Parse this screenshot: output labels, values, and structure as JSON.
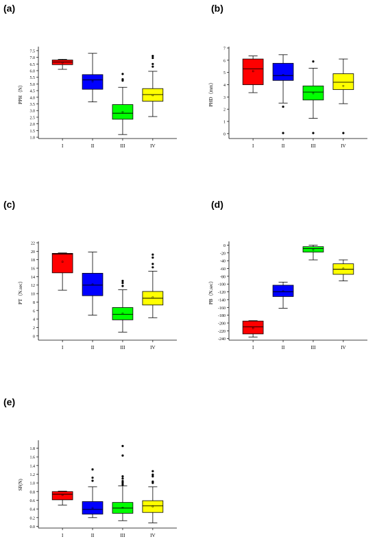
{
  "chart_data": [
    {
      "type": "box",
      "panel_label": "(a)",
      "ylabel": "PPH（N）",
      "categories": [
        "I",
        "II",
        "III",
        "IV"
      ],
      "ylim": [
        0.9,
        7.7
      ],
      "yticks": [
        1.0,
        1.5,
        2.0,
        2.5,
        3.0,
        3.5,
        4.0,
        4.5,
        5.0,
        5.5,
        6.0,
        6.5,
        7.0,
        7.5
      ],
      "ytick_labels": [
        "1.0",
        "1.5",
        "2.0",
        "2.5",
        "3.0",
        "3.5",
        "4.0",
        "4.5",
        "5.0",
        "5.5",
        "6.0",
        "6.5",
        "7.0",
        "7.5"
      ],
      "boxes": [
        {
          "min": 6.1,
          "q1": 6.45,
          "median": 6.65,
          "q3": 6.8,
          "max": 6.85,
          "mean": 6.6,
          "outliers": [],
          "color": "#ff0000"
        },
        {
          "min": 3.65,
          "q1": 4.6,
          "median": 5.3,
          "q3": 5.7,
          "max": 7.3,
          "mean": 5.2,
          "outliers": [],
          "color": "#0000ff"
        },
        {
          "min": 1.2,
          "q1": 2.35,
          "median": 2.8,
          "q3": 3.45,
          "max": 4.75,
          "mean": 2.9,
          "outliers": [
            5.25,
            5.35,
            5.75
          ],
          "color": "#00ff00"
        },
        {
          "min": 2.55,
          "q1": 3.7,
          "median": 4.2,
          "q3": 4.65,
          "max": 5.95,
          "mean": 4.15,
          "outliers": [
            6.3,
            6.5,
            6.95,
            7.1
          ],
          "color": "#ffff00"
        }
      ]
    },
    {
      "type": "box",
      "panel_label": "(b)",
      "ylabel": "PHD（mm）",
      "categories": [
        "I",
        "II",
        "III",
        "IV"
      ],
      "ylim": [
        -0.4,
        7.0
      ],
      "yticks": [
        0,
        1,
        2,
        3,
        4,
        5,
        6,
        7
      ],
      "ytick_labels": [
        "0",
        "1",
        "2",
        "3",
        "4",
        "5",
        "6",
        "7"
      ],
      "boxes": [
        {
          "min": 3.35,
          "q1": 4.0,
          "median": 5.3,
          "q3": 6.1,
          "max": 6.35,
          "mean": 5.1,
          "outliers": [],
          "color": "#ff0000"
        },
        {
          "min": 2.5,
          "q1": 4.35,
          "median": 4.75,
          "q3": 5.75,
          "max": 6.45,
          "mean": 4.8,
          "outliers": [
            2.2,
            0.05
          ],
          "color": "#0000ff"
        },
        {
          "min": 1.25,
          "q1": 2.75,
          "median": 3.4,
          "q3": 3.9,
          "max": 5.35,
          "mean": 3.3,
          "outliers": [
            5.9,
            0.05
          ],
          "color": "#00ff00"
        },
        {
          "min": 2.45,
          "q1": 3.6,
          "median": 4.2,
          "q3": 4.9,
          "max": 6.1,
          "mean": 3.9,
          "outliers": [
            0.05
          ],
          "color": "#ffff00"
        }
      ]
    },
    {
      "type": "box",
      "panel_label": "(c)",
      "ylabel": "PT（N.sec）",
      "categories": [
        "I",
        "II",
        "III",
        "IV"
      ],
      "ylim": [
        -1,
        22
      ],
      "yticks": [
        0,
        2,
        4,
        6,
        8,
        10,
        12,
        14,
        16,
        18,
        20,
        22
      ],
      "ytick_labels": [
        "0",
        "2",
        "4",
        "6",
        "8",
        "10",
        "12",
        "14",
        "16",
        "18",
        "20",
        "22"
      ],
      "boxes": [
        {
          "min": 10.8,
          "q1": 14.9,
          "median": 19.3,
          "q3": 19.5,
          "max": 19.6,
          "mean": 17.5,
          "outliers": [],
          "color": "#ff0000"
        },
        {
          "min": 4.9,
          "q1": 9.5,
          "median": 12.0,
          "q3": 14.8,
          "max": 19.8,
          "mean": 12.2,
          "outliers": [],
          "color": "#0000ff"
        },
        {
          "min": 0.9,
          "q1": 3.8,
          "median": 5.1,
          "q3": 6.7,
          "max": 10.9,
          "mean": 5.3,
          "outliers": [
            11.8,
            12.5,
            13.0
          ],
          "color": "#00ff00"
        },
        {
          "min": 4.3,
          "q1": 7.3,
          "median": 8.9,
          "q3": 10.5,
          "max": 15.3,
          "mean": 9.1,
          "outliers": [
            16.2,
            17.0,
            18.5,
            19.2
          ],
          "color": "#ffff00"
        }
      ]
    },
    {
      "type": "box",
      "panel_label": "(d)",
      "ylabel": "PB（N.sec）",
      "categories": [
        "I",
        "II",
        "III",
        "IV"
      ],
      "ylim": [
        -244,
        6
      ],
      "yticks": [
        -240,
        -220,
        -200,
        -180,
        -160,
        -140,
        -120,
        -100,
        -80,
        -60,
        -40,
        -20,
        0
      ],
      "ytick_labels": [
        "-240",
        "-220",
        "-200",
        "-180",
        "-160",
        "-140",
        "-120",
        "-100",
        "-80",
        "-60",
        "-40",
        "-20",
        "0"
      ],
      "boxes": [
        {
          "min": -236,
          "q1": -228,
          "median": -210,
          "q3": -195,
          "max": -194,
          "mean": -213,
          "outliers": [],
          "color": "#ff0000"
        },
        {
          "min": -162,
          "q1": -132,
          "median": -120,
          "q3": -103,
          "max": -95,
          "mean": -118,
          "outliers": [],
          "color": "#0000ff"
        },
        {
          "min": -38,
          "q1": -18,
          "median": -9,
          "q3": -4,
          "max": 0,
          "mean": -12,
          "outliers": [],
          "color": "#00ff00"
        },
        {
          "min": -92,
          "q1": -75,
          "median": -62,
          "q3": -48,
          "max": -38,
          "mean": -60,
          "outliers": [],
          "color": "#ffff00"
        }
      ]
    },
    {
      "type": "box",
      "panel_label": "(e)",
      "ylabel": "SF(N)",
      "categories": [
        "I",
        "II",
        "III",
        "IV"
      ],
      "ylim": [
        -0.04,
        1.95
      ],
      "yticks": [
        0.0,
        0.2,
        0.4,
        0.6,
        0.8,
        1.0,
        1.2,
        1.4,
        1.6,
        1.8
      ],
      "ytick_labels": [
        "0.0",
        "0.2",
        "0.4",
        "0.6",
        "0.8",
        "1.0",
        "1.2",
        "1.4",
        "1.6",
        "1.8"
      ],
      "boxes": [
        {
          "min": 0.49,
          "q1": 0.61,
          "median": 0.74,
          "q3": 0.8,
          "max": 0.81,
          "mean": 0.72,
          "outliers": [],
          "color": "#ff0000"
        },
        {
          "min": 0.2,
          "q1": 0.28,
          "median": 0.39,
          "q3": 0.57,
          "max": 0.91,
          "mean": 0.42,
          "outliers": [
            1.05,
            1.12,
            1.31
          ],
          "color": "#0000ff"
        },
        {
          "min": 0.13,
          "q1": 0.3,
          "median": 0.42,
          "q3": 0.55,
          "max": 0.93,
          "mean": 0.43,
          "outliers": [
            0.96,
            1.0,
            1.04,
            1.1,
            1.15,
            1.63,
            1.85
          ],
          "color": "#00ff00"
        },
        {
          "min": 0.08,
          "q1": 0.32,
          "median": 0.47,
          "q3": 0.59,
          "max": 0.91,
          "mean": 0.46,
          "outliers": [
            1.0,
            1.03,
            1.15,
            1.19,
            1.27
          ],
          "color": "#ffff00"
        }
      ]
    }
  ]
}
